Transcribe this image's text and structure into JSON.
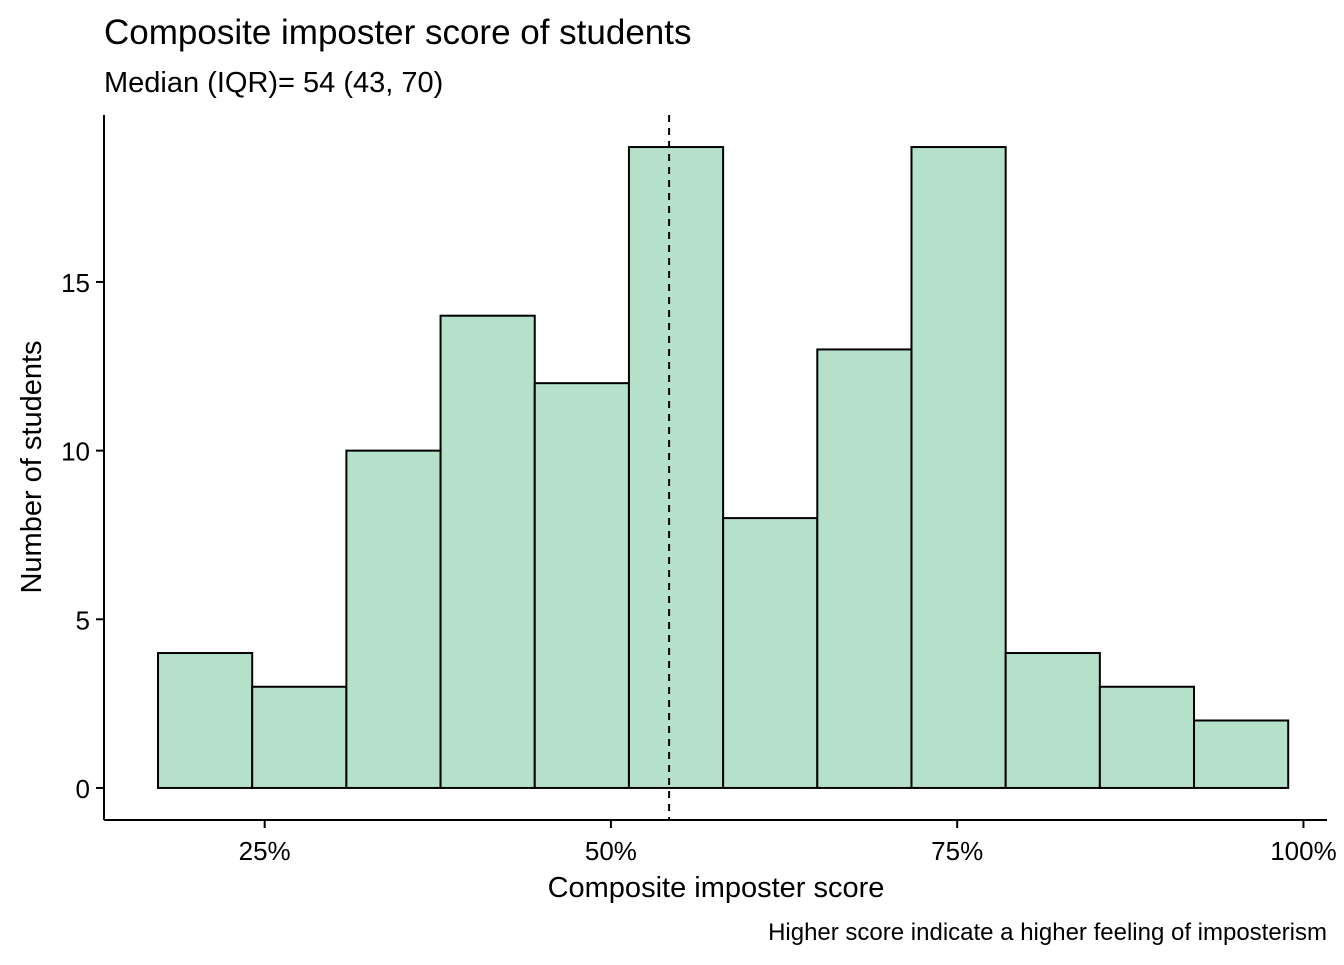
{
  "chart_data": {
    "type": "bar",
    "title": "Composite imposter score of students",
    "subtitle": "Median (IQR)= 54 (43, 70)",
    "xlabel": "Composite imposter score",
    "ylabel": "Number of students",
    "caption": "Higher score indicate a higher feeling of imposterism",
    "xlim": [
      13.4,
      101.7
    ],
    "ylim": [
      -0.95,
      19.95
    ],
    "x_ticks": [
      {
        "value": 25,
        "label": "25%"
      },
      {
        "value": 50,
        "label": "50%"
      },
      {
        "value": 75,
        "label": "75%"
      },
      {
        "value": 100,
        "label": "100%"
      }
    ],
    "y_ticks": [
      {
        "value": 0,
        "label": "0"
      },
      {
        "value": 5,
        "label": "5"
      },
      {
        "value": 10,
        "label": "10"
      },
      {
        "value": 15,
        "label": "15"
      }
    ],
    "bins": [
      {
        "start": 17.3,
        "end": 24.1,
        "count": 4
      },
      {
        "start": 24.1,
        "end": 30.9,
        "count": 3
      },
      {
        "start": 30.9,
        "end": 37.7,
        "count": 10
      },
      {
        "start": 37.7,
        "end": 44.5,
        "count": 14
      },
      {
        "start": 44.5,
        "end": 51.3,
        "count": 12
      },
      {
        "start": 51.3,
        "end": 58.1,
        "count": 19
      },
      {
        "start": 58.1,
        "end": 64.9,
        "count": 8
      },
      {
        "start": 64.9,
        "end": 71.7,
        "count": 13
      },
      {
        "start": 71.7,
        "end": 78.5,
        "count": 19
      },
      {
        "start": 78.5,
        "end": 85.3,
        "count": 4
      },
      {
        "start": 85.3,
        "end": 92.1,
        "count": 3
      },
      {
        "start": 92.1,
        "end": 98.9,
        "count": 2
      }
    ],
    "median_line": 54.2,
    "bar_fill": "#b5e0ca",
    "bar_stroke": "#000000",
    "grid": false,
    "legend": "none"
  }
}
